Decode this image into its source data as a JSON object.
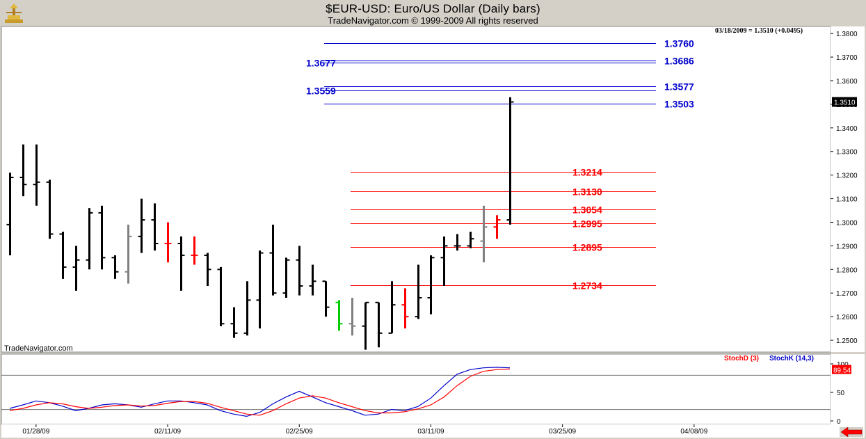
{
  "header": {
    "title": "$EUR-USD:  Euro/US Dollar  (Daily bars)",
    "subtitle": "TradeNavigator.com © 1999-2009 All rights reserved"
  },
  "watermark": "TradeNavigator.com",
  "quote_readout": "03/18/2009 = 1.3510 (+0.0495)",
  "price_axis": {
    "ticks": [
      "1.2500",
      "1.2600",
      "1.2700",
      "1.2800",
      "1.2900",
      "1.3000",
      "1.3100",
      "1.3200",
      "1.3300",
      "1.3400",
      "1.3500",
      "1.3600",
      "1.3700",
      "1.3800"
    ],
    "current_price_label": "1.3510"
  },
  "stoch_axis": {
    "ticks": [
      "0",
      "50",
      "100"
    ],
    "current_label": "89.54"
  },
  "stoch_legend": {
    "d_label": "StochD (3)",
    "k_label": "StochK (14,3)"
  },
  "date_axis": [
    "01/28/09",
    "02/11/09",
    "02/25/09",
    "03/11/09",
    "03/25/09",
    "04/08/09"
  ],
  "colors": {
    "background": "#ffffff",
    "frame": "#d4d0c8",
    "bar_default": "#000000",
    "bar_gray": "#808080",
    "bar_red": "#ff0000",
    "bar_green": "#00cc00",
    "blue_levels": "#0000cc",
    "red_levels": "#ff0000",
    "stoch_k": "#0000cc",
    "stoch_d": "#ff0000"
  },
  "icons": {
    "logo": "trade-navigator-logo-icon",
    "scroll": "red-left-arrow-icon"
  },
  "chart_data": {
    "type": "ohlc",
    "title": "$EUR-USD:  Euro/US Dollar  (Daily bars)",
    "ylim": [
      1.245,
      1.383
    ],
    "bar_interval": "daily",
    "bars": [
      {
        "o": 1.299,
        "h": 1.321,
        "l": 1.286,
        "c": 1.319,
        "color": "black"
      },
      {
        "o": 1.319,
        "h": 1.333,
        "l": 1.311,
        "c": 1.316,
        "color": "black"
      },
      {
        "o": 1.316,
        "h": 1.333,
        "l": 1.307,
        "c": 1.317,
        "color": "black"
      },
      {
        "o": 1.317,
        "h": 1.318,
        "l": 1.293,
        "c": 1.295,
        "color": "black"
      },
      {
        "o": 1.295,
        "h": 1.296,
        "l": 1.276,
        "c": 1.281,
        "color": "black"
      },
      {
        "o": 1.281,
        "h": 1.29,
        "l": 1.271,
        "c": 1.284,
        "color": "black"
      },
      {
        "o": 1.284,
        "h": 1.306,
        "l": 1.28,
        "c": 1.304,
        "color": "black"
      },
      {
        "o": 1.304,
        "h": 1.307,
        "l": 1.28,
        "c": 1.285,
        "color": "black"
      },
      {
        "o": 1.285,
        "h": 1.286,
        "l": 1.276,
        "c": 1.279,
        "color": "black"
      },
      {
        "o": 1.279,
        "h": 1.299,
        "l": 1.274,
        "c": 1.294,
        "color": "gray"
      },
      {
        "o": 1.294,
        "h": 1.31,
        "l": 1.287,
        "c": 1.301,
        "color": "black"
      },
      {
        "o": 1.301,
        "h": 1.308,
        "l": 1.288,
        "c": 1.291,
        "color": "black"
      },
      {
        "o": 1.291,
        "h": 1.3,
        "l": 1.283,
        "c": 1.291,
        "color": "red"
      },
      {
        "o": 1.291,
        "h": 1.294,
        "l": 1.271,
        "c": 1.286,
        "color": "black"
      },
      {
        "o": 1.286,
        "h": 1.294,
        "l": 1.282,
        "c": 1.286,
        "color": "red"
      },
      {
        "o": 1.286,
        "h": 1.287,
        "l": 1.273,
        "c": 1.28,
        "color": "black"
      },
      {
        "o": 1.28,
        "h": 1.281,
        "l": 1.256,
        "c": 1.257,
        "color": "black"
      },
      {
        "o": 1.257,
        "h": 1.264,
        "l": 1.251,
        "c": 1.253,
        "color": "black"
      },
      {
        "o": 1.253,
        "h": 1.275,
        "l": 1.252,
        "c": 1.267,
        "color": "black"
      },
      {
        "o": 1.267,
        "h": 1.288,
        "l": 1.255,
        "c": 1.287,
        "color": "black"
      },
      {
        "o": 1.287,
        "h": 1.299,
        "l": 1.269,
        "c": 1.27,
        "color": "black"
      },
      {
        "o": 1.27,
        "h": 1.285,
        "l": 1.268,
        "c": 1.284,
        "color": "black"
      },
      {
        "o": 1.284,
        "h": 1.29,
        "l": 1.269,
        "c": 1.273,
        "color": "black"
      },
      {
        "o": 1.273,
        "h": 1.282,
        "l": 1.269,
        "c": 1.275,
        "color": "black"
      },
      {
        "o": 1.275,
        "h": 1.275,
        "l": 1.26,
        "c": 1.264,
        "color": "black"
      },
      {
        "o": 1.266,
        "h": 1.267,
        "l": 1.254,
        "c": 1.257,
        "color": "green"
      },
      {
        "o": 1.257,
        "h": 1.268,
        "l": 1.252,
        "c": 1.256,
        "color": "gray"
      },
      {
        "o": 1.256,
        "h": 1.266,
        "l": 1.246,
        "c": 1.266,
        "color": "black"
      },
      {
        "o": 1.266,
        "h": 1.266,
        "l": 1.247,
        "c": 1.253,
        "color": "black"
      },
      {
        "o": 1.253,
        "h": 1.275,
        "l": 1.253,
        "c": 1.265,
        "color": "black"
      },
      {
        "o": 1.265,
        "h": 1.272,
        "l": 1.255,
        "c": 1.26,
        "color": "red"
      },
      {
        "o": 1.26,
        "h": 1.282,
        "l": 1.259,
        "c": 1.268,
        "color": "black"
      },
      {
        "o": 1.268,
        "h": 1.286,
        "l": 1.261,
        "c": 1.285,
        "color": "black"
      },
      {
        "o": 1.285,
        "h": 1.294,
        "l": 1.273,
        "c": 1.29,
        "color": "black"
      },
      {
        "o": 1.29,
        "h": 1.295,
        "l": 1.288,
        "c": 1.29,
        "color": "black"
      },
      {
        "o": 1.29,
        "h": 1.296,
        "l": 1.289,
        "c": 1.293,
        "color": "black"
      },
      {
        "o": 1.292,
        "h": 1.307,
        "l": 1.283,
        "c": 1.298,
        "color": "gray"
      },
      {
        "o": 1.298,
        "h": 1.303,
        "l": 1.293,
        "c": 1.301,
        "color": "red"
      },
      {
        "o": 1.301,
        "h": 1.353,
        "l": 1.299,
        "c": 1.351,
        "color": "black"
      }
    ],
    "levels": [
      {
        "value": 1.376,
        "label": "1.3760",
        "color": "blue",
        "from_bar": 24
      },
      {
        "value": 1.3686,
        "label": "1.3686",
        "color": "blue",
        "from_bar": 24
      },
      {
        "value": 1.3677,
        "label": "1.3677",
        "color": "blue",
        "from_bar": 24,
        "label_left": true
      },
      {
        "value": 1.3577,
        "label": "1.3577",
        "color": "blue",
        "from_bar": 24
      },
      {
        "value": 1.3559,
        "label": "1.3559",
        "color": "blue",
        "from_bar": 24,
        "label_left": true
      },
      {
        "value": 1.3503,
        "label": "1.3503",
        "color": "blue",
        "from_bar": 24
      },
      {
        "value": 1.3214,
        "label": "1.3214",
        "color": "red",
        "from_bar": 26
      },
      {
        "value": 1.313,
        "label": "1.3130",
        "color": "red",
        "from_bar": 26
      },
      {
        "value": 1.3054,
        "label": "1.3054",
        "color": "red",
        "from_bar": 26
      },
      {
        "value": 1.2995,
        "label": "1.2995",
        "color": "red",
        "from_bar": 26
      },
      {
        "value": 1.2895,
        "label": "1.2895",
        "color": "red",
        "from_bar": 26
      },
      {
        "value": 1.2734,
        "label": "1.2734",
        "color": "red",
        "from_bar": 26
      }
    ],
    "stochastic": {
      "ylim": [
        0,
        100
      ],
      "reference_lines": [
        20,
        80
      ],
      "k": [
        22,
        28,
        35,
        32,
        26,
        18,
        22,
        28,
        30,
        28,
        24,
        30,
        35,
        35,
        32,
        28,
        18,
        12,
        8,
        15,
        30,
        42,
        52,
        42,
        32,
        25,
        18,
        10,
        12,
        20,
        18,
        25,
        40,
        62,
        82,
        90,
        93,
        94,
        93
      ],
      "d": [
        18,
        22,
        28,
        32,
        30,
        25,
        22,
        24,
        27,
        28,
        26,
        27,
        31,
        34,
        34,
        31,
        24,
        18,
        12,
        10,
        18,
        30,
        40,
        44,
        40,
        32,
        25,
        18,
        14,
        14,
        16,
        21,
        28,
        42,
        62,
        78,
        87,
        90,
        91
      ]
    }
  }
}
